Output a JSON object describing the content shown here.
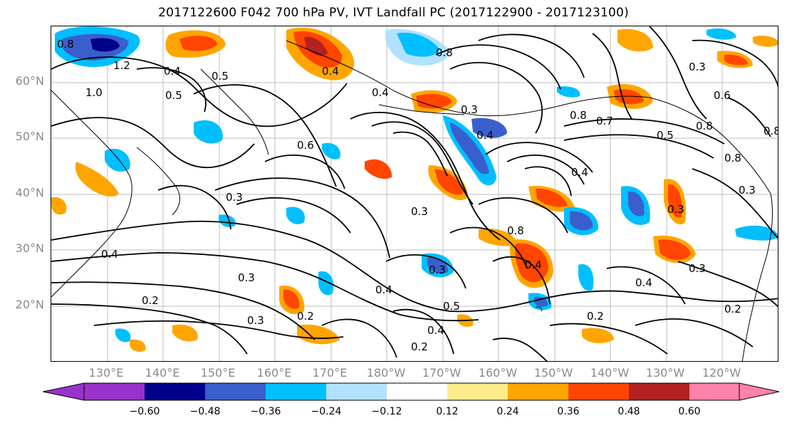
{
  "title": "2017122600 F042 700 hPa PV, IVT Landfall PC (2017122900 - 2017123100)",
  "lat_labels": [
    "60°N",
    "50°N",
    "40°N",
    "30°N",
    "20°N"
  ],
  "lon_labels": [
    "130°E",
    "140°E",
    "150°E",
    "160°E",
    "170°E",
    "180°W",
    "170°W",
    "160°W",
    "150°W",
    "140°W",
    "130°W",
    "120°W"
  ],
  "colorbar": {
    "colors": [
      "#9932cc",
      "#00008b",
      "#3a5fcd",
      "#00bfff",
      "#b0e2ff",
      "#ffffff",
      "#ffec8b",
      "#ffa500",
      "#ff4500",
      "#b22222",
      "#ff82ab"
    ],
    "ticks": [
      "−0.60",
      "−0.48",
      "−0.36",
      "−0.24",
      "−0.12",
      "0.12",
      "0.24",
      "0.36",
      "0.48",
      "0.60"
    ]
  },
  "contour_labels": [
    "0.8",
    "1.2",
    "1.0",
    "0.4",
    "0.5",
    "0.4",
    "0.8",
    "0.4",
    "0.3",
    "0.3",
    "0.8",
    "0.7",
    "0.4",
    "0.8",
    "0.4",
    "0.6",
    "0.3",
    "0.3",
    "0.4",
    "0.3",
    "0.3",
    "0.8",
    "0.4",
    "0.3",
    "0.4",
    "0.2",
    "0.3",
    "0.2",
    "0.4",
    "0.5",
    "0.2",
    "0.2",
    "0.4",
    "0.2",
    "0.5",
    "0.3",
    "0.6",
    "0.8",
    "0.5",
    "0.3",
    "0.8"
  ]
}
